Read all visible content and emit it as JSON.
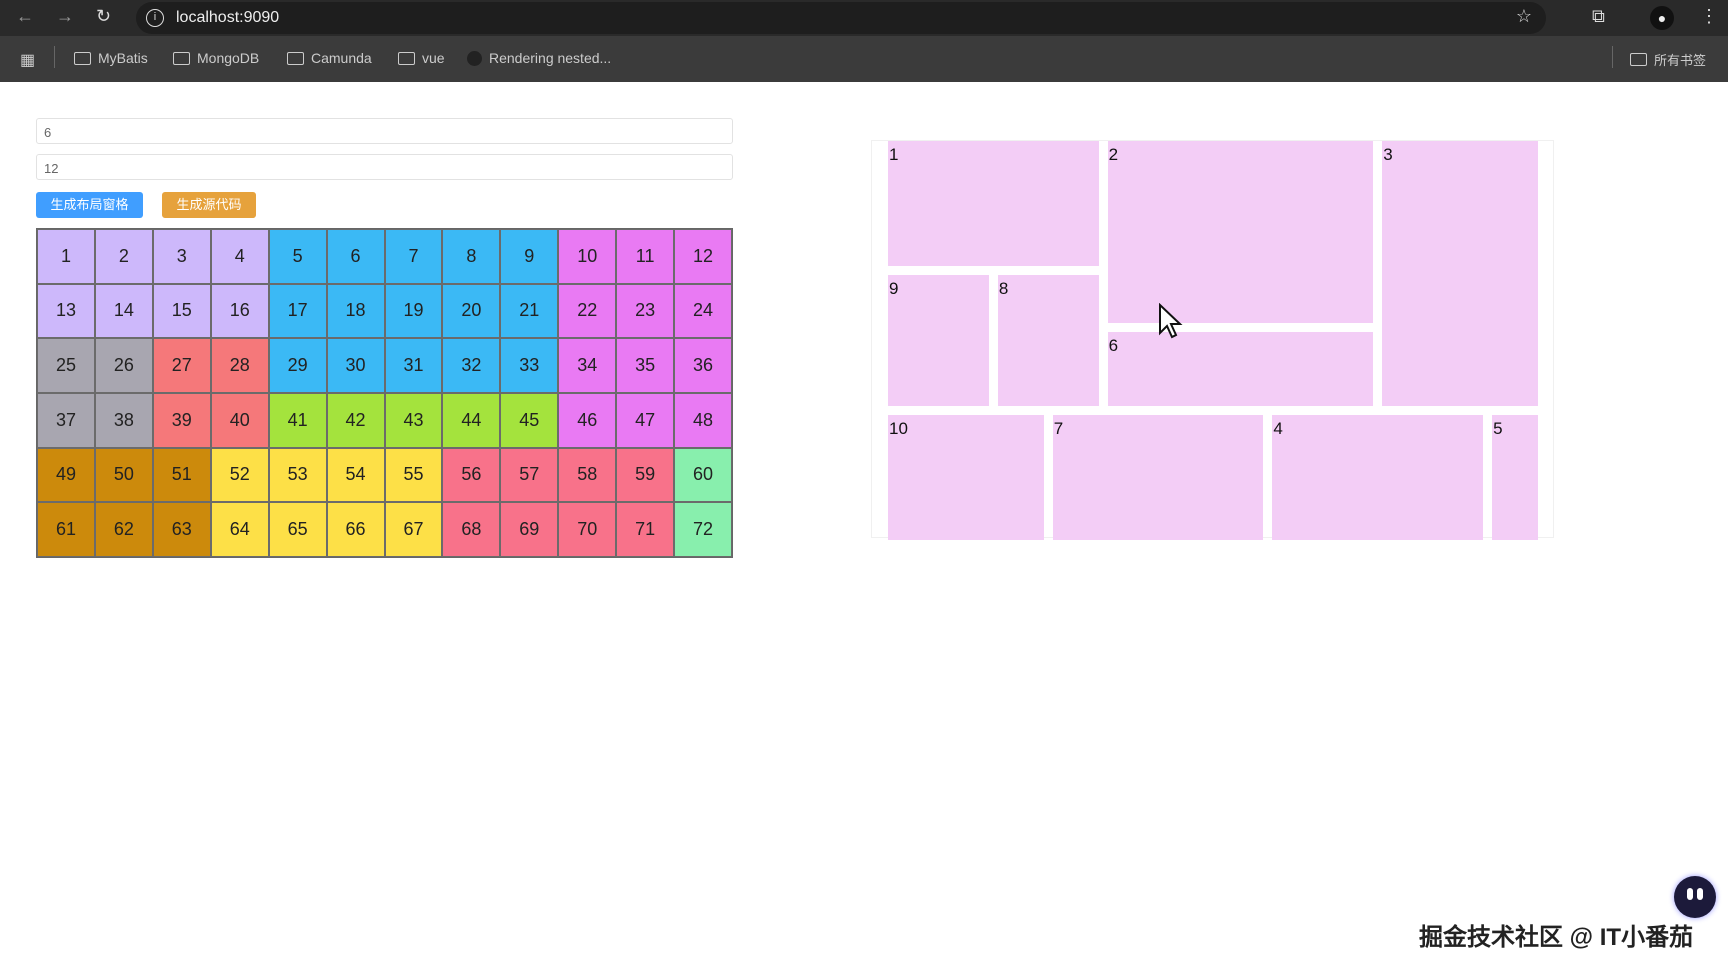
{
  "browser": {
    "url": "localhost:9090",
    "bookmarks": [
      "MyBatis",
      "MongoDB",
      "Camunda",
      "vue",
      "Rendering nested..."
    ],
    "all_bookmarks": "所有书签"
  },
  "form": {
    "rows_value": "6",
    "cols_value": "12",
    "generate_grid_label": "生成布局窗格",
    "generate_code_label": "生成源代码",
    "generate_grid_color": "#409eff",
    "generate_code_color": "#e6a23c"
  },
  "grid": {
    "rows": 6,
    "cols": 12,
    "regions": [
      {
        "color": "#cdb8fb",
        "cells": [
          1,
          2,
          3,
          4,
          13,
          14,
          15,
          16
        ]
      },
      {
        "color": "#3bb9f5",
        "cells": [
          5,
          6,
          7,
          8,
          9,
          17,
          18,
          19,
          20,
          21,
          29,
          30,
          31,
          32,
          33
        ]
      },
      {
        "color": "#e97af3",
        "cells": [
          10,
          11,
          12,
          22,
          23,
          24,
          34,
          35,
          36,
          46,
          47,
          48
        ]
      },
      {
        "color": "#a8a6b0",
        "cells": [
          25,
          26,
          37,
          38
        ]
      },
      {
        "color": "#f5787a",
        "cells": [
          27,
          28,
          39,
          40
        ]
      },
      {
        "color": "#a4e33d",
        "cells": [
          41,
          42,
          43,
          44,
          45
        ]
      },
      {
        "color": "#cc8a0c",
        "cells": [
          49,
          50,
          51,
          61,
          62,
          63
        ]
      },
      {
        "color": "#fde047",
        "cells": [
          52,
          53,
          54,
          55,
          64,
          65,
          66,
          67
        ]
      },
      {
        "color": "#f8728a",
        "cells": [
          56,
          57,
          58,
          59,
          68,
          69,
          70,
          71
        ]
      },
      {
        "color": "#88efad",
        "cells": [
          60,
          72
        ]
      }
    ]
  },
  "layout_preview": {
    "color": "#f3cdf6",
    "boxes": [
      "1",
      "2",
      "3",
      "9",
      "8",
      "6",
      "10",
      "7",
      "4",
      "5"
    ]
  },
  "watermark": "掘金技术社区 @ IT小番茄"
}
